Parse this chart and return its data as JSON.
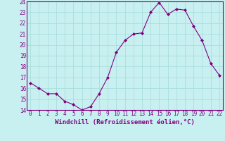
{
  "x": [
    0,
    1,
    2,
    3,
    4,
    5,
    6,
    7,
    8,
    9,
    10,
    11,
    12,
    13,
    14,
    15,
    16,
    17,
    18,
    19,
    20,
    21,
    22
  ],
  "y": [
    16.5,
    16.0,
    15.5,
    15.5,
    14.8,
    14.5,
    14.0,
    14.3,
    15.5,
    17.0,
    19.3,
    20.4,
    21.0,
    21.1,
    23.0,
    23.9,
    22.8,
    23.3,
    23.2,
    21.7,
    20.4,
    18.3,
    17.2
  ],
  "line_color": "#800080",
  "marker": "D",
  "marker_size": 2.0,
  "bg_color": "#c8f0f0",
  "grid_color": "#aadddd",
  "xlabel": "Windchill (Refroidissement éolien,°C)",
  "xlabel_color": "#800080",
  "tick_color": "#800080",
  "spine_color": "#800080",
  "ylim": [
    14,
    24
  ],
  "xlim": [
    -0.4,
    22.4
  ],
  "yticks": [
    14,
    15,
    16,
    17,
    18,
    19,
    20,
    21,
    22,
    23,
    24
  ],
  "xticks": [
    0,
    1,
    2,
    3,
    4,
    5,
    6,
    7,
    8,
    9,
    10,
    11,
    12,
    13,
    14,
    15,
    16,
    17,
    18,
    19,
    20,
    21,
    22
  ],
  "tick_fontsize": 5.5,
  "xlabel_fontsize": 6.5
}
